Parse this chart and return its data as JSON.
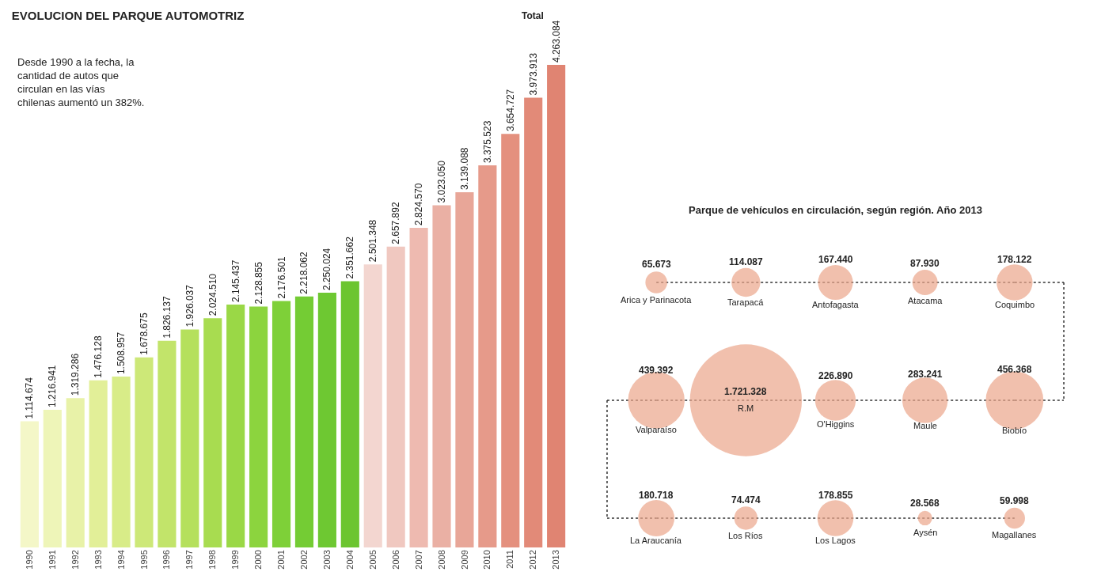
{
  "chart_data": [
    {
      "type": "bar",
      "title": "EVOLUCION DEL PARQUE AUTOMOTRIZ",
      "subtitle": "Desde 1990 a la fecha, la cantidad de autos que circulan en las vías chilenas aumentó un 382%.",
      "categories": [
        "1990",
        "1991",
        "1992",
        "1993",
        "1994",
        "1995",
        "1996",
        "1997",
        "1998",
        "1999",
        "2000",
        "2001",
        "2002",
        "2003",
        "2004",
        "2005",
        "2006",
        "2007",
        "2008",
        "2009",
        "2010",
        "2011",
        "2012",
        "2013"
      ],
      "values": [
        1114674,
        1216941,
        1319286,
        1476128,
        1508957,
        1678675,
        1826137,
        1926037,
        2024510,
        2145437,
        2128855,
        2176501,
        2218062,
        2250024,
        2351662,
        2501348,
        2657892,
        2824570,
        3023050,
        3139088,
        3375523,
        3654727,
        3973913,
        4263084
      ],
      "value_labels": [
        "1.114.674",
        "1.216.941",
        "1.319.286",
        "1.476.128",
        "1.508.957",
        "1.678.675",
        "1.826.137",
        "1.926.037",
        "2.024.510",
        "2.145.437",
        "2.128.855",
        "2.176.501",
        "2.218.062",
        "2.250.024",
        "2.351.662",
        "2.501.348",
        "2.657.892",
        "2.824.570",
        "3.023.050",
        "3.139.088",
        "3.375.523",
        "3.654.727",
        "3.973.913",
        "4.263.084"
      ],
      "colors": [
        "#f4f7c8",
        "#eef5b8",
        "#e8f2a8",
        "#e2ef98",
        "#d8ec88",
        "#cde878",
        "#c2e46a",
        "#b5e05c",
        "#a8dc50",
        "#9ad846",
        "#8cd43e",
        "#7ed038",
        "#74cc34",
        "#6ec832",
        "#6cc530",
        "#f3d6d0",
        "#f0c8c0",
        "#eebab0",
        "#eab0a4",
        "#e8a698",
        "#e69a8a",
        "#e4907e",
        "#e28a78",
        "#e08472"
      ],
      "annotations": [
        "Total"
      ]
    },
    {
      "type": "other",
      "title": "Parque de vehículos en circulación, según región. Año 2013",
      "categories": [
        "Arica y Parinacota",
        "Tarapacá",
        "Antofagasta",
        "Atacama",
        "Coquimbo",
        "Valparaíso",
        "R.M",
        "O'Higgins",
        "Maule",
        "Biobío",
        "La Araucanía",
        "Los Ríos",
        "Los Lagos",
        "Aysén",
        "Magallanes"
      ],
      "values": [
        65673,
        114087,
        167440,
        87930,
        178122,
        439392,
        1721328,
        226890,
        283241,
        456368,
        180718,
        74474,
        178855,
        28568,
        59998
      ],
      "value_labels": [
        "65.673",
        "114.087",
        "167.440",
        "87.930",
        "178.122",
        "439.392",
        "1.721.328",
        "226.890",
        "283.241",
        "456.368",
        "180.718",
        "74.474",
        "178.855",
        "28.568",
        "59.998"
      ],
      "color": "#eba58a"
    }
  ]
}
